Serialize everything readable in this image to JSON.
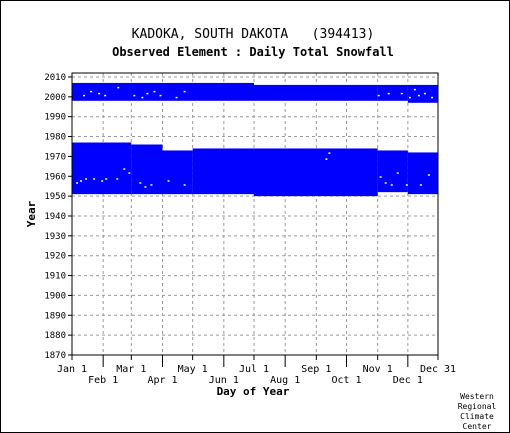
{
  "chart_data": {
    "type": "heatmap",
    "title": "KADOKA, SOUTH DAKOTA   (394413)",
    "subtitle": "Observed Element : Daily Total Snowfall",
    "xlabel": "Day of Year",
    "ylabel": "Year",
    "xlim": [
      1,
      365
    ],
    "ylim": [
      1870,
      2012
    ],
    "y_ticks": [
      1870,
      1880,
      1890,
      1900,
      1910,
      1920,
      1930,
      1940,
      1950,
      1960,
      1970,
      1980,
      1990,
      2000,
      2010
    ],
    "x_ticks_upper": [
      {
        "label": "Jan 1",
        "day": 1
      },
      {
        "label": "Mar 1",
        "day": 60
      },
      {
        "label": "May 1",
        "day": 121
      },
      {
        "label": "Jul 1",
        "day": 182
      },
      {
        "label": "Sep 1",
        "day": 244
      },
      {
        "label": "Nov 1",
        "day": 305
      },
      {
        "label": "Dec 31",
        "day": 365
      }
    ],
    "x_ticks_lower": [
      {
        "label": "Feb 1",
        "day": 32
      },
      {
        "label": "Apr 1",
        "day": 91
      },
      {
        "label": "Jun 1",
        "day": 152
      },
      {
        "label": "Aug 1",
        "day": 213
      },
      {
        "label": "Oct 1",
        "day": 274
      },
      {
        "label": "Dec 1",
        "day": 335
      }
    ],
    "grid": true,
    "data_color": "#0000ff",
    "coverage": [
      {
        "day_start": 1,
        "day_end": 60,
        "year_start": 1951,
        "year_end": 1977
      },
      {
        "day_start": 60,
        "day_end": 91,
        "year_start": 1951,
        "year_end": 1976
      },
      {
        "day_start": 91,
        "day_end": 121,
        "year_start": 1951,
        "year_end": 1973
      },
      {
        "day_start": 121,
        "day_end": 182,
        "year_start": 1951,
        "year_end": 1974
      },
      {
        "day_start": 182,
        "day_end": 305,
        "year_start": 1950,
        "year_end": 1974
      },
      {
        "day_start": 305,
        "day_end": 335,
        "year_start": 1952,
        "year_end": 1973
      },
      {
        "day_start": 335,
        "day_end": 365,
        "year_start": 1951,
        "year_end": 1972
      },
      {
        "day_start": 1,
        "day_end": 182,
        "year_start": 1998,
        "year_end": 2007
      },
      {
        "day_start": 182,
        "day_end": 305,
        "year_start": 1998,
        "year_end": 2006
      },
      {
        "day_start": 305,
        "day_end": 335,
        "year_start": 1998,
        "year_end": 2006
      },
      {
        "day_start": 335,
        "day_end": 365,
        "year_start": 1997,
        "year_end": 2006
      }
    ],
    "missing_days": [
      {
        "day": 5,
        "year": 1956
      },
      {
        "day": 9,
        "year": 1957
      },
      {
        "day": 14,
        "year": 1958
      },
      {
        "day": 22,
        "year": 1958
      },
      {
        "day": 30,
        "year": 1957
      },
      {
        "day": 34,
        "year": 1958
      },
      {
        "day": 45,
        "year": 1958
      },
      {
        "day": 52,
        "year": 1963
      },
      {
        "day": 57,
        "year": 1961
      },
      {
        "day": 68,
        "year": 1956
      },
      {
        "day": 73,
        "year": 1954
      },
      {
        "day": 79,
        "year": 1955
      },
      {
        "day": 96,
        "year": 1957
      },
      {
        "day": 112,
        "year": 1955
      },
      {
        "day": 253,
        "year": 1968
      },
      {
        "day": 256,
        "year": 1971
      },
      {
        "day": 307,
        "year": 1959
      },
      {
        "day": 312,
        "year": 1956
      },
      {
        "day": 318,
        "year": 1955
      },
      {
        "day": 324,
        "year": 1961
      },
      {
        "day": 333,
        "year": 1955
      },
      {
        "day": 347,
        "year": 1955
      },
      {
        "day": 355,
        "year": 1960
      },
      {
        "day": 12,
        "year": 2000
      },
      {
        "day": 19,
        "year": 2002
      },
      {
        "day": 27,
        "year": 2001
      },
      {
        "day": 33,
        "year": 2000
      },
      {
        "day": 46,
        "year": 2004
      },
      {
        "day": 62,
        "year": 2000
      },
      {
        "day": 70,
        "year": 1999
      },
      {
        "day": 75,
        "year": 2001
      },
      {
        "day": 82,
        "year": 2002
      },
      {
        "day": 88,
        "year": 2000
      },
      {
        "day": 104,
        "year": 1999
      },
      {
        "day": 112,
        "year": 2002
      },
      {
        "day": 305,
        "year": 2000
      },
      {
        "day": 315,
        "year": 2001
      },
      {
        "day": 328,
        "year": 2001
      },
      {
        "day": 336,
        "year": 1999
      },
      {
        "day": 341,
        "year": 2003
      },
      {
        "day": 345,
        "year": 2000
      },
      {
        "day": 351,
        "year": 2001
      },
      {
        "day": 358,
        "year": 1999
      }
    ]
  },
  "credit": [
    "Western",
    "Regional",
    "Climate",
    "Center"
  ]
}
